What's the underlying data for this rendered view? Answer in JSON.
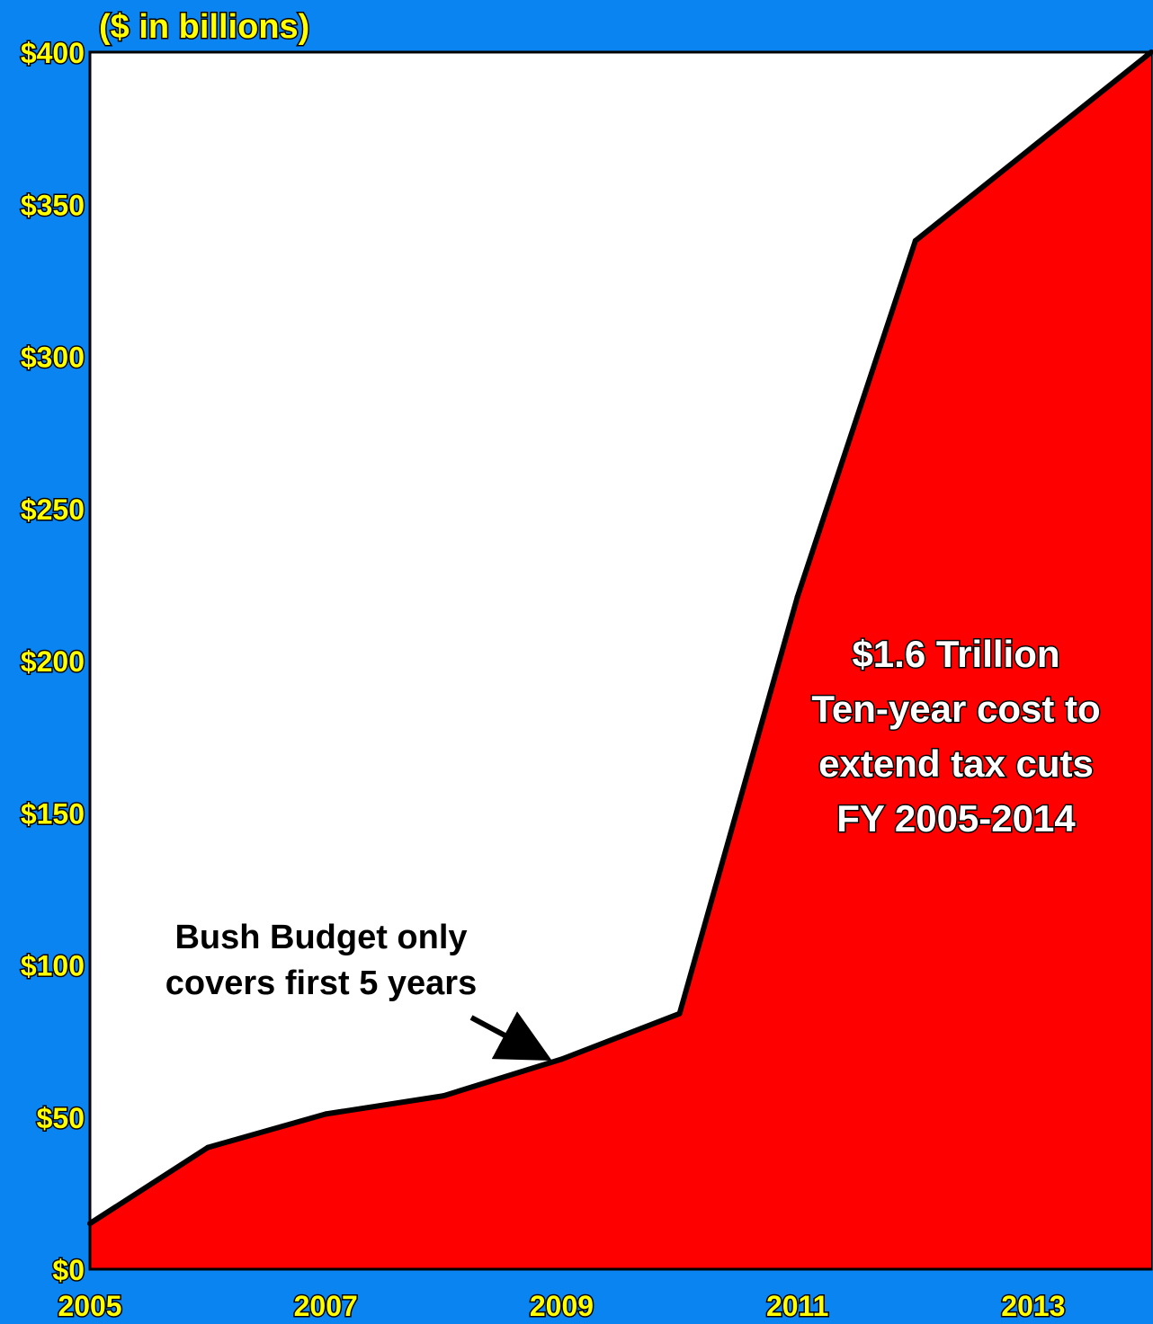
{
  "colors": {
    "background": "#0a84f0",
    "plot_background": "#ffffff",
    "area_fill": "#ff0000",
    "line": "#000000",
    "axis_label": "#ffff00",
    "callout_text": "#ffffff",
    "note_text": "#000000"
  },
  "chart_data": {
    "type": "area",
    "ylabel": "($ in billions)",
    "x": [
      2005,
      2006,
      2007,
      2008,
      2009,
      2010,
      2011,
      2012,
      2013,
      2014
    ],
    "values": [
      15,
      40,
      51,
      57,
      69,
      84,
      221,
      338,
      369,
      400
    ],
    "xlim": [
      2005,
      2014
    ],
    "ylim": [
      0,
      400
    ],
    "x_ticks": [
      "2005",
      "2007",
      "2009",
      "2011",
      "2013"
    ],
    "y_ticks": [
      "$0",
      "$50",
      "$100",
      "$150",
      "$200",
      "$250",
      "$300",
      "$350",
      "$400"
    ],
    "grid": false,
    "annotations": {
      "note": [
        "Bush Budget only",
        "covers first 5 years"
      ],
      "callout": [
        "$1.6 Trillion",
        "Ten-year cost to",
        "extend tax cuts",
        "FY 2005-2014"
      ]
    }
  }
}
